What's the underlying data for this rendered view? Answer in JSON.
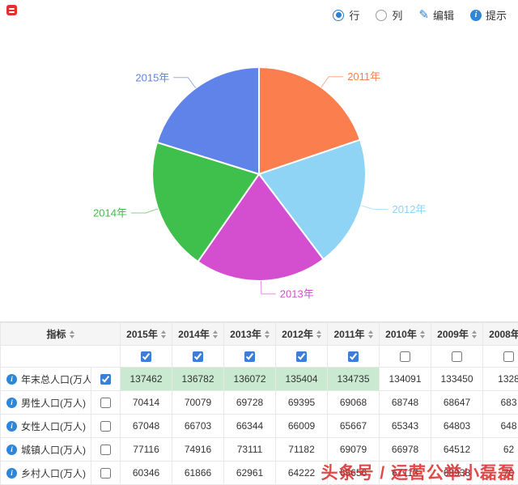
{
  "toolbar": {
    "row_radio": {
      "label": "行",
      "selected": true
    },
    "col_radio": {
      "label": "列",
      "selected": false
    },
    "edit_button": {
      "label": "编辑"
    },
    "tip_button": {
      "label": "提示"
    }
  },
  "icons": {
    "edit": "✎",
    "info": "i"
  },
  "chart_data": {
    "type": "pie",
    "title": "",
    "series_name": "年末总人口(万人)",
    "start_angle_deg": -90,
    "direction": "clockwise",
    "legend_position": "labels-outside",
    "slices": [
      {
        "label": "2011年",
        "value": 134735,
        "color": "#fb7e4f"
      },
      {
        "label": "2012年",
        "value": 135404,
        "color": "#8fd3f5"
      },
      {
        "label": "2013年",
        "value": 136072,
        "color": "#d34fd0"
      },
      {
        "label": "2014年",
        "value": 136782,
        "color": "#3fbf4b"
      },
      {
        "label": "2015年",
        "value": 137462,
        "color": "#6083e9"
      }
    ]
  },
  "table": {
    "indicator_header": "指标",
    "highlight_color": "#c9ead0",
    "year_columns": [
      {
        "label": "2015年",
        "checked": true
      },
      {
        "label": "2014年",
        "checked": true
      },
      {
        "label": "2013年",
        "checked": true
      },
      {
        "label": "2012年",
        "checked": true
      },
      {
        "label": "2011年",
        "checked": true
      },
      {
        "label": "2010年",
        "checked": false
      },
      {
        "label": "2009年",
        "checked": false
      },
      {
        "label": "2008年",
        "checked": false
      }
    ],
    "rows": [
      {
        "label": "年末总人口(万人)",
        "checked": true,
        "highlight": true,
        "values": [
          "137462",
          "136782",
          "136072",
          "135404",
          "134735",
          "134091",
          "133450",
          "1328"
        ]
      },
      {
        "label": "男性人口(万人)",
        "checked": false,
        "highlight": false,
        "values": [
          "70414",
          "70079",
          "69728",
          "69395",
          "69068",
          "68748",
          "68647",
          "683"
        ]
      },
      {
        "label": "女性人口(万人)",
        "checked": false,
        "highlight": false,
        "values": [
          "67048",
          "66703",
          "66344",
          "66009",
          "65667",
          "65343",
          "64803",
          "648"
        ]
      },
      {
        "label": "城镇人口(万人)",
        "checked": false,
        "highlight": false,
        "values": [
          "77116",
          "74916",
          "73111",
          "71182",
          "69079",
          "66978",
          "64512",
          "62"
        ]
      },
      {
        "label": "乡村人口(万人)",
        "checked": false,
        "highlight": false,
        "values": [
          "60346",
          "61866",
          "62961",
          "64222",
          "65656",
          "67113",
          "68938",
          "70"
        ]
      }
    ]
  },
  "watermark": "头条号 / 运营公举小磊磊"
}
